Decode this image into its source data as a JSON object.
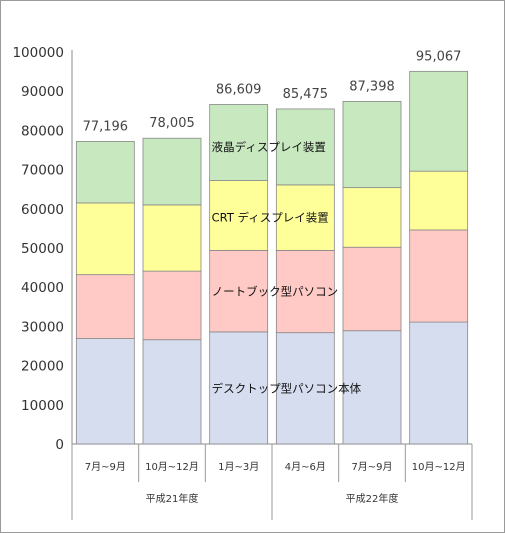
{
  "chart_data": {
    "type": "bar",
    "stacked": true,
    "categories": [
      "7月~9月",
      "10月~12月",
      "1月~3月",
      "4月~6月",
      "7月~9月",
      "10月~12月"
    ],
    "groups": [
      {
        "label": "平成21年度",
        "span": [
          0,
          2
        ]
      },
      {
        "label": "平成22年度",
        "span": [
          3,
          5
        ]
      }
    ],
    "series": [
      {
        "name": "デスクトップ型パソコン本体",
        "color": "#d6ddef",
        "values": [
          26900,
          26600,
          28600,
          28400,
          28900,
          31100
        ]
      },
      {
        "name": "ノートブック型パソコン",
        "color": "#ffc9c5",
        "values": [
          16300,
          17500,
          20800,
          21000,
          21300,
          23500
        ]
      },
      {
        "name": "CRT ディスプレイ装置",
        "color": "#ffff99",
        "values": [
          18300,
          16900,
          17800,
          16700,
          15200,
          15000
        ]
      },
      {
        "name": "液晶ディスプレイ装置",
        "color": "#c8e8c0",
        "values": [
          15696,
          17005,
          19409,
          19375,
          21998,
          25467
        ]
      }
    ],
    "totals": [
      "77,196",
      "78,005",
      "86,609",
      "85,475",
      "87,398",
      "95,067"
    ],
    "ylim": [
      0,
      100000
    ],
    "yticks": [
      "0",
      "10000",
      "20000",
      "30000",
      "40000",
      "50000",
      "60000",
      "70000",
      "80000",
      "90000",
      "100000"
    ],
    "grid": false,
    "legend": "inline labels"
  }
}
